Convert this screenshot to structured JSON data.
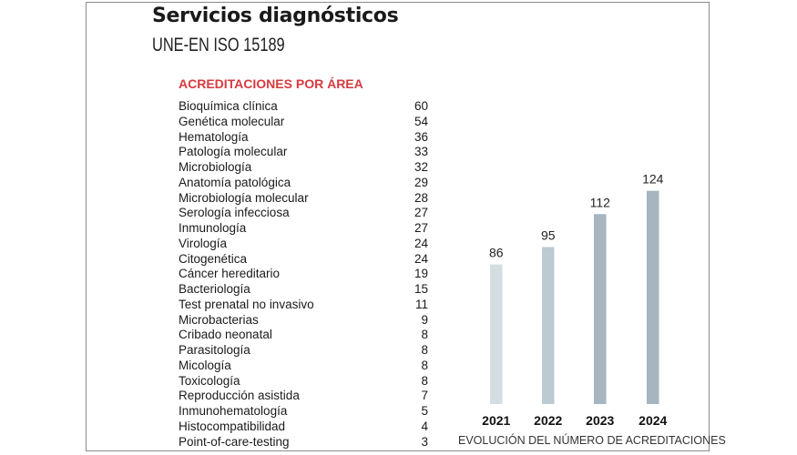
{
  "title": "Servicios diagnósticos",
  "subtitle": "UNE-EN ISO 15189",
  "areas": {
    "heading": "ACREDITACIONES POR ÁREA",
    "heading_color": "#d63a3f",
    "items": [
      {
        "label": "Bioquímica clínica",
        "value": "60"
      },
      {
        "label": "Genética molecular",
        "value": "54"
      },
      {
        "label": "Hematología",
        "value": "36"
      },
      {
        "label": "Patología molecular",
        "value": "33"
      },
      {
        "label": "Microbiología",
        "value": "32"
      },
      {
        "label": "Anatomía patológica",
        "value": "29"
      },
      {
        "label": "Microbiología molecular",
        "value": "28"
      },
      {
        "label": "Serología infecciosa",
        "value": "27"
      },
      {
        "label": "Inmunología",
        "value": "27"
      },
      {
        "label": "Virología",
        "value": "24"
      },
      {
        "label": "Citogenética",
        "value": "24"
      },
      {
        "label": "Cáncer hereditario",
        "value": "19"
      },
      {
        "label": "Bacteriología",
        "value": "15"
      },
      {
        "label": "Test prenatal no invasivo",
        "value": "11"
      },
      {
        "label": "Microbacterias",
        "value": "9"
      },
      {
        "label": "Cribado neonatal",
        "value": "8"
      },
      {
        "label": "Parasitología",
        "value": "8"
      },
      {
        "label": "Micología",
        "value": "8"
      },
      {
        "label": "Toxicología",
        "value": "8"
      },
      {
        "label": "Reproducción asistida",
        "value": "7"
      },
      {
        "label": "Inmunohematología",
        "value": "5"
      },
      {
        "label": "Histocompatibilidad",
        "value": "4"
      },
      {
        "label": "Point-of-care-testing",
        "value": "3"
      }
    ]
  },
  "chart_data": {
    "type": "bar",
    "categories": [
      "2021",
      "2022",
      "2023",
      "2024"
    ],
    "values": [
      86,
      95,
      112,
      124
    ],
    "colors": [
      "#d3dde2",
      "#bccbd2",
      "#a6b5bf",
      "#a6b5bf"
    ],
    "xlabel": "EVOLUCIÓN DEL NÚMERO DE ACREDITACIONES",
    "grid": false
  }
}
